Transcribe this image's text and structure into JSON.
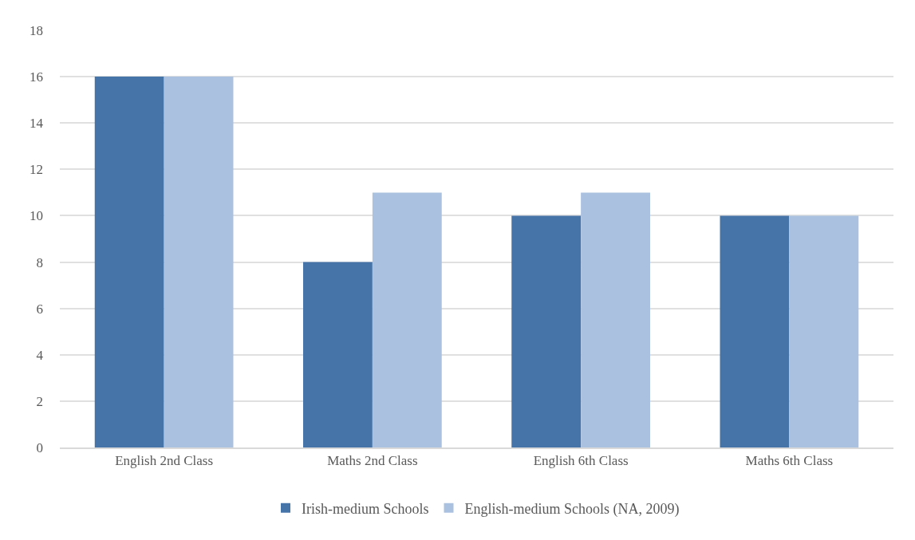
{
  "chart_data": {
    "type": "bar",
    "categories": [
      "English 2nd Class",
      "Maths 2nd Class",
      "English 6th Class",
      "Maths 6th Class"
    ],
    "series": [
      {
        "name": "Irish-medium Schools",
        "color": "#4673a8",
        "values": [
          16,
          8,
          10,
          10
        ]
      },
      {
        "name": "English-medium Schools (NA, 2009)",
        "color": "#abc1e0",
        "values": [
          16,
          11,
          11,
          10
        ]
      }
    ],
    "ylim": [
      0,
      18
    ],
    "yticks": [
      0,
      2,
      4,
      6,
      8,
      10,
      12,
      14,
      16,
      18
    ],
    "grid": "y",
    "legend": "bottom"
  }
}
